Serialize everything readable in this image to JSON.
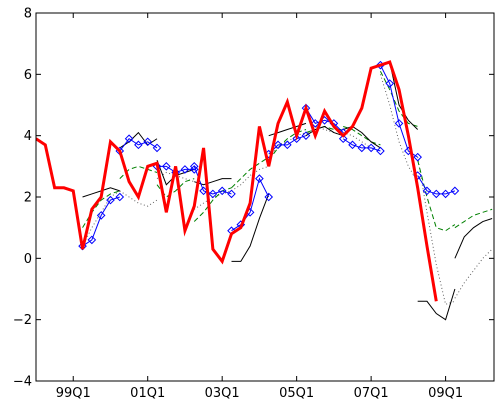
{
  "chart_data": {
    "type": "line",
    "x_tick_labels": [
      "99Q1",
      "01Q1",
      "03Q1",
      "05Q1",
      "07Q1",
      "09Q1"
    ],
    "x_tick_positions": [
      1999.0,
      2001.0,
      2003.0,
      2005.0,
      2007.0,
      2009.0
    ],
    "xlim": [
      1998.0,
      2010.3
    ],
    "ylim": [
      -4,
      8
    ],
    "y_ticks": [
      -4,
      -2,
      0,
      2,
      4,
      6,
      8
    ],
    "y_tick_labels": [
      "−4",
      "−2",
      "0",
      "2",
      "4",
      "6",
      "8"
    ],
    "grid": false,
    "legend": "none",
    "series": [
      {
        "color": "#ff0000",
        "style": "solid-thick",
        "x": [
          1998.0,
          1998.25,
          1998.5,
          1998.75,
          1999.0,
          1999.25,
          1999.5,
          1999.75,
          2000.0,
          2000.25,
          2000.5,
          2000.75,
          2001.0,
          2001.25,
          2001.5,
          2001.75,
          2002.0,
          2002.25,
          2002.5,
          2002.75,
          2003.0,
          2003.25,
          2003.5,
          2003.75,
          2004.0,
          2004.25,
          2004.5,
          2004.75,
          2005.0,
          2005.25,
          2005.5,
          2005.75,
          2006.0,
          2006.25,
          2006.5,
          2006.75,
          2007.0,
          2007.25,
          2007.5,
          2007.75,
          2008.0,
          2008.25,
          2008.5,
          2008.75,
          2009.0,
          2009.25
        ],
        "y": [
          3.9,
          3.7,
          2.3,
          2.3,
          2.2,
          0.3,
          1.6,
          2.0,
          3.8,
          3.5,
          2.5,
          2.0,
          3.0,
          3.1,
          1.5,
          3.0,
          0.9,
          1.7,
          3.6,
          0.3,
          -0.1,
          0.8,
          1.0,
          1.8,
          4.3,
          3.0,
          4.4,
          5.1,
          4.0,
          4.9,
          4.0,
          4.8,
          4.3,
          4.0,
          4.3,
          4.9,
          6.2,
          6.3,
          6.4,
          5.5,
          4.0,
          2.3,
          0.4,
          -1.4,
          null,
          null
        ]
      },
      {
        "color": "#0000ff",
        "style": "solid-diamond",
        "segments": [
          {
            "x": [
              1999.25,
              1999.5,
              1999.75,
              2000.0,
              2000.25
            ],
            "y": [
              0.4,
              0.6,
              1.4,
              1.9,
              2.0
            ]
          },
          {
            "x": [
              2000.25,
              2000.5,
              2000.75,
              2001.0,
              2001.25
            ],
            "y": [
              3.5,
              3.9,
              3.7,
              3.8,
              3.6
            ]
          },
          {
            "x": [
              2001.25,
              2001.5,
              2001.75,
              2002.0,
              2002.25
            ],
            "y": [
              3.0,
              3.0,
              2.8,
              2.9,
              2.9
            ]
          },
          {
            "x": [
              2002.25,
              2002.5,
              2002.75,
              2003.0,
              2003.25
            ],
            "y": [
              3.0,
              2.2,
              2.1,
              2.2,
              2.1
            ]
          },
          {
            "x": [
              2003.25,
              2003.5,
              2003.75,
              2004.0,
              2004.25
            ],
            "y": [
              0.9,
              1.1,
              1.5,
              2.6,
              2.0
            ]
          },
          {
            "x": [
              2004.25,
              2004.5,
              2004.75,
              2005.0,
              2005.25
            ],
            "y": [
              3.4,
              3.7,
              3.7,
              3.9,
              4.0
            ]
          },
          {
            "x": [
              2005.25,
              2005.5,
              2005.75,
              2006.0,
              2006.25
            ],
            "y": [
              4.9,
              4.4,
              4.5,
              4.4,
              4.1
            ]
          },
          {
            "x": [
              2006.25,
              2006.5,
              2006.75,
              2007.0,
              2007.25
            ],
            "y": [
              3.9,
              3.7,
              3.6,
              3.6,
              3.5
            ]
          },
          {
            "x": [
              2007.25,
              2007.5,
              2007.75,
              2008.0,
              2008.25
            ],
            "y": [
              6.3,
              5.7,
              4.4,
              3.5,
              3.3
            ]
          },
          {
            "x": [
              2008.25,
              2008.5,
              2008.75,
              2009.0,
              2009.25
            ],
            "y": [
              2.7,
              2.2,
              2.1,
              2.1,
              2.2
            ]
          }
        ]
      },
      {
        "color": "#000000",
        "style": "solid-thin",
        "segments": [
          {
            "x": [
              1999.25,
              1999.5,
              1999.75,
              2000.0,
              2000.25
            ],
            "y": [
              2.0,
              2.1,
              2.2,
              2.3,
              2.2
            ]
          },
          {
            "x": [
              2000.25,
              2000.5,
              2000.75,
              2001.0,
              2001.25
            ],
            "y": [
              3.6,
              3.8,
              4.1,
              3.7,
              3.9
            ]
          },
          {
            "x": [
              2001.25,
              2001.5,
              2001.75,
              2002.0,
              2002.25
            ],
            "y": [
              3.2,
              2.4,
              2.7,
              2.8,
              2.9
            ]
          },
          {
            "x": [
              2002.25,
              2002.5,
              2002.75,
              2003.0,
              2003.25
            ],
            "y": [
              2.5,
              2.4,
              2.5,
              2.6,
              2.6
            ]
          },
          {
            "x": [
              2003.25,
              2003.5,
              2003.75,
              2004.0,
              2004.25
            ],
            "y": [
              -0.1,
              -0.1,
              0.4,
              1.3,
              2.1
            ]
          },
          {
            "x": [
              2004.25,
              2004.5,
              2004.75,
              2005.0,
              2005.25
            ],
            "y": [
              4.0,
              4.1,
              4.2,
              4.3,
              4.4
            ]
          },
          {
            "x": [
              2005.25,
              2005.5,
              2005.75,
              2006.0,
              2006.25
            ],
            "y": [
              4.0,
              4.2,
              4.3,
              4.1,
              4.0
            ]
          },
          {
            "x": [
              2006.25,
              2006.5,
              2006.75,
              2007.0,
              2007.25
            ],
            "y": [
              4.2,
              4.3,
              4.1,
              3.8,
              3.6
            ]
          },
          {
            "x": [
              2007.25,
              2007.5,
              2007.75,
              2008.0,
              2008.25
            ],
            "y": [
              6.3,
              6.4,
              5.0,
              4.5,
              4.2
            ]
          },
          {
            "x": [
              2008.25,
              2008.5,
              2008.75,
              2009.0,
              2009.25
            ],
            "y": [
              -1.4,
              -1.4,
              -1.8,
              -2.0,
              -1.0
            ]
          },
          {
            "x": [
              2009.25,
              2009.5,
              2009.75,
              2010.0,
              2010.25
            ],
            "y": [
              0.0,
              0.7,
              1.0,
              1.2,
              1.3
            ]
          }
        ]
      },
      {
        "color": "#008000",
        "style": "dashed",
        "segments": [
          {
            "x": [
              1999.25,
              1999.5,
              1999.75,
              2000.0,
              2000.25
            ],
            "y": [
              1.0,
              1.5,
              1.9,
              2.1,
              2.2
            ]
          },
          {
            "x": [
              2000.25,
              2000.5,
              2000.75,
              2001.0,
              2001.25
            ],
            "y": [
              2.6,
              2.9,
              3.0,
              2.9,
              2.8
            ]
          },
          {
            "x": [
              2001.25,
              2001.5,
              2001.75,
              2002.0,
              2002.25
            ],
            "y": [
              2.4,
              2.0,
              2.2,
              2.5,
              2.6
            ]
          },
          {
            "x": [
              2002.25,
              2002.5,
              2002.75,
              2003.0,
              2003.25
            ],
            "y": [
              1.2,
              1.5,
              1.9,
              2.2,
              2.3
            ]
          },
          {
            "x": [
              2003.25,
              2003.5,
              2003.75,
              2004.0,
              2004.25
            ],
            "y": [
              2.3,
              2.6,
              2.9,
              3.1,
              3.3
            ]
          },
          {
            "x": [
              2004.25,
              2004.5,
              2004.75,
              2005.0,
              2005.25
            ],
            "y": [
              3.2,
              3.6,
              3.9,
              4.1,
              4.2
            ]
          },
          {
            "x": [
              2005.25,
              2005.5,
              2005.75,
              2006.0,
              2006.25
            ],
            "y": [
              4.1,
              4.2,
              4.3,
              4.2,
              4.2
            ]
          },
          {
            "x": [
              2006.25,
              2006.5,
              2006.75,
              2007.0,
              2007.25
            ],
            "y": [
              4.3,
              4.2,
              4.0,
              3.8,
              3.7
            ]
          },
          {
            "x": [
              2007.25,
              2007.5,
              2007.75,
              2008.0,
              2008.25
            ],
            "y": [
              6.1,
              5.5,
              4.8,
              4.4,
              4.3
            ]
          },
          {
            "x": [
              2008.25,
              2008.5,
              2008.75,
              2009.0,
              2009.25
            ],
            "y": [
              3.2,
              2.0,
              1.0,
              0.9,
              1.1
            ]
          },
          {
            "x": [
              2009.25,
              2009.5,
              2009.75,
              2010.0,
              2010.25
            ],
            "y": [
              1.0,
              1.2,
              1.4,
              1.5,
              1.6
            ]
          }
        ]
      },
      {
        "color": "#606060",
        "style": "dotted",
        "segments": [
          {
            "x": [
              1999.25,
              1999.5,
              1999.75,
              2000.0,
              2000.25
            ],
            "y": [
              0.4,
              1.0,
              1.5,
              2.0,
              2.2
            ]
          },
          {
            "x": [
              2000.25,
              2000.5,
              2000.75,
              2001.0,
              2001.25
            ],
            "y": [
              2.2,
              2.0,
              1.8,
              1.7,
              1.9
            ]
          },
          {
            "x": [
              2001.25,
              2001.5,
              2001.75,
              2002.0,
              2002.25
            ],
            "y": [
              2.6,
              2.8,
              2.7,
              2.6,
              2.5
            ]
          },
          {
            "x": [
              2002.25,
              2002.5,
              2002.75,
              2003.0,
              2003.25
            ],
            "y": [
              1.6,
              1.8,
              2.0,
              2.1,
              2.2
            ]
          },
          {
            "x": [
              2003.25,
              2003.5,
              2003.75,
              2004.0,
              2004.25
            ],
            "y": [
              2.2,
              2.4,
              2.7,
              2.9,
              3.0
            ]
          },
          {
            "x": [
              2004.25,
              2004.5,
              2004.75,
              2005.0,
              2005.25
            ],
            "y": [
              3.2,
              3.7,
              3.8,
              4.0,
              4.1
            ]
          },
          {
            "x": [
              2005.25,
              2005.5,
              2005.75,
              2006.0,
              2006.25
            ],
            "y": [
              4.0,
              4.3,
              4.2,
              4.1,
              4.0
            ]
          },
          {
            "x": [
              2006.25,
              2006.5,
              2006.75,
              2007.0,
              2007.25
            ],
            "y": [
              4.1,
              4.0,
              3.8,
              3.6,
              3.5
            ]
          },
          {
            "x": [
              2007.25,
              2007.5,
              2007.75,
              2008.0,
              2008.25
            ],
            "y": [
              6.0,
              5.0,
              3.8,
              3.0,
              2.5
            ]
          },
          {
            "x": [
              2008.25,
              2008.5,
              2008.75,
              2009.0,
              2009.25
            ],
            "y": [
              3.3,
              1.5,
              -0.2,
              -1.5,
              -1.4
            ]
          },
          {
            "x": [
              2009.25,
              2009.5,
              2009.75,
              2010.0,
              2010.25
            ],
            "y": [
              -1.3,
              -0.8,
              -0.4,
              0.0,
              0.3
            ]
          }
        ]
      }
    ]
  }
}
